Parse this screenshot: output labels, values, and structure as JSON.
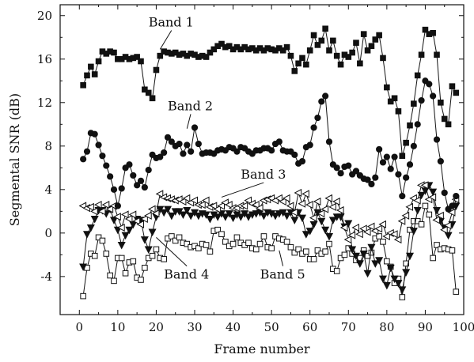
{
  "chart_data": {
    "type": "line",
    "title": "",
    "xlabel": "Frame number",
    "ylabel": "Segmental SNR (dB)",
    "xlim": [
      -5,
      100
    ],
    "ylim": [
      -7.5,
      21
    ],
    "xticks": [
      0,
      10,
      20,
      30,
      40,
      50,
      60,
      70,
      80,
      90,
      100
    ],
    "yticks": [
      -4,
      0,
      4,
      8,
      12,
      16,
      20
    ],
    "grid": false,
    "legend": "none",
    "x": [
      1,
      2,
      3,
      4,
      5,
      6,
      7,
      8,
      9,
      10,
      11,
      12,
      13,
      14,
      15,
      16,
      17,
      18,
      19,
      20,
      21,
      22,
      23,
      24,
      25,
      26,
      27,
      28,
      29,
      30,
      31,
      32,
      33,
      34,
      35,
      36,
      37,
      38,
      39,
      40,
      41,
      42,
      43,
      44,
      45,
      46,
      47,
      48,
      49,
      50,
      51,
      52,
      53,
      54,
      55,
      56,
      57,
      58,
      59,
      60,
      61,
      62,
      63,
      64,
      65,
      66,
      67,
      68,
      69,
      70,
      71,
      72,
      73,
      74,
      75,
      76,
      77,
      78,
      79,
      80,
      81,
      82,
      83,
      84,
      85,
      86,
      87,
      88,
      89,
      90,
      91,
      92,
      93,
      94,
      95,
      96,
      97,
      98
    ],
    "series": [
      {
        "name": "Band 1",
        "marker": "filled-square",
        "values": [
          13.6,
          14.5,
          15.3,
          14.6,
          15.8,
          16.7,
          16.5,
          16.7,
          16.6,
          16.0,
          16.0,
          16.2,
          16.0,
          16.1,
          16.2,
          15.8,
          13.2,
          12.9,
          12.4,
          15.0,
          16.3,
          16.7,
          16.6,
          16.5,
          16.6,
          16.4,
          16.5,
          16.3,
          16.5,
          16.4,
          16.2,
          16.3,
          16.2,
          16.6,
          16.9,
          17.2,
          17.4,
          17.1,
          17.2,
          16.9,
          17.1,
          16.9,
          17.1,
          16.9,
          17.0,
          16.8,
          17.0,
          16.8,
          17.0,
          16.9,
          16.8,
          17.0,
          16.8,
          17.1,
          16.3,
          14.9,
          15.6,
          16.1,
          15.5,
          16.8,
          18.2,
          17.3,
          17.7,
          18.8,
          16.8,
          17.7,
          16.3,
          15.5,
          16.4,
          16.2,
          16.6,
          17.5,
          15.6,
          18.3,
          16.8,
          17.2,
          17.8,
          18.2,
          16.1,
          13.4,
          12.1,
          12.4,
          11.2,
          7.1,
          8.3,
          9.9,
          11.9,
          14.5,
          16.4,
          18.7,
          18.3,
          18.4,
          16.4,
          12.0,
          10.5,
          10.0,
          13.5,
          12.9
        ]
      },
      {
        "name": "Band 2",
        "marker": "filled-circle",
        "values": [
          6.8,
          7.5,
          9.2,
          9.1,
          8.1,
          7.1,
          6.2,
          5.2,
          4.0,
          2.5,
          4.1,
          6.0,
          6.3,
          5.3,
          4.4,
          4.8,
          4.2,
          5.8,
          7.2,
          6.9,
          7.0,
          7.4,
          8.8,
          8.4,
          8.0,
          8.2,
          7.3,
          8.1,
          7.5,
          9.7,
          8.2,
          7.3,
          7.4,
          7.4,
          7.3,
          7.6,
          7.7,
          7.6,
          7.9,
          7.8,
          7.5,
          7.9,
          7.8,
          7.5,
          7.3,
          7.6,
          7.6,
          7.8,
          7.8,
          7.6,
          8.2,
          8.4,
          7.6,
          7.5,
          7.5,
          7.2,
          6.4,
          6.6,
          7.9,
          8.1,
          9.7,
          10.6,
          12.1,
          12.6,
          8.4,
          6.3,
          6.0,
          5.5,
          6.1,
          6.2,
          5.4,
          5.7,
          5.3,
          5.0,
          4.9,
          4.5,
          5.1,
          7.7,
          6.5,
          7.0,
          5.9,
          7.0,
          5.4,
          3.4,
          5.1,
          6.3,
          8.0,
          10.0,
          12.2,
          14.0,
          13.7,
          12.6,
          8.6,
          6.6,
          3.7,
          2.2,
          2.5,
          3.4
        ]
      },
      {
        "name": "Band 3",
        "marker": "open-triangle-left",
        "values": [
          2.5,
          2.3,
          2.4,
          2.0,
          2.6,
          2.0,
          2.6,
          2.2,
          2.5,
          1.5,
          0.5,
          1.7,
          1.3,
          1.7,
          1.1,
          0.8,
          1.3,
          1.6,
          2.2,
          1.8,
          3.6,
          3.3,
          3.2,
          3.1,
          3.0,
          3.1,
          2.9,
          3.2,
          2.8,
          3.0,
          2.6,
          2.6,
          3.0,
          2.4,
          2.5,
          2.2,
          2.5,
          2.8,
          2.6,
          2.3,
          2.3,
          2.5,
          2.5,
          3.0,
          2.7,
          2.6,
          2.3,
          3.0,
          3.1,
          3.2,
          3.0,
          3.2,
          2.9,
          3.2,
          2.5,
          1.9,
          3.7,
          2.7,
          3.6,
          2.6,
          1.4,
          2.9,
          1.8,
          2.2,
          3.2,
          2.4,
          2.9,
          2.1,
          0.5,
          -0.6,
          -0.2,
          0.5,
          -0.1,
          0.4,
          0.1,
          0.6,
          0.2,
          0.4,
          0.8,
          -0.3,
          0.0,
          -0.1,
          -0.6,
          1.1,
          1.6,
          2.4,
          3.2,
          3.0,
          4.4,
          4.4,
          3.1,
          3.3,
          1.2,
          1.6,
          0.3,
          0.7,
          1.9,
          3.1
        ]
      },
      {
        "name": "Band 4",
        "marker": "filled-triangle-down",
        "values": [
          -3.1,
          -0.1,
          0.5,
          1.3,
          2.1,
          2.1,
          1.8,
          2.2,
          1.2,
          0.3,
          -1.1,
          -0.2,
          0.3,
          0.8,
          1.3,
          1.2,
          -0.6,
          -1.5,
          0.1,
          1.5,
          2.2,
          1.9,
          2.2,
          1.6,
          2.0,
          2.0,
          1.7,
          2.1,
          1.6,
          1.9,
          1.6,
          1.8,
          1.7,
          1.3,
          1.7,
          1.5,
          1.8,
          1.5,
          1.8,
          1.4,
          1.7,
          1.5,
          1.8,
          1.5,
          1.7,
          1.8,
          1.9,
          1.6,
          1.9,
          1.8,
          1.6,
          1.8,
          1.9,
          1.6,
          1.9,
          1.2,
          1.9,
          1.4,
          -0.1,
          0.2,
          0.8,
          1.9,
          1.1,
          0.3,
          -0.3,
          1.2,
          1.5,
          1.5,
          0.6,
          0.9,
          -1.5,
          -2.1,
          -2.8,
          -1.9,
          -3.7,
          -1.3,
          -2.8,
          -2.5,
          -4.2,
          -4.8,
          -3.2,
          -4.2,
          -4.6,
          -5.2,
          -3.6,
          -2.1,
          0.2,
          2.1,
          3.5,
          3.9,
          4.4,
          3.8,
          2.1,
          1.1,
          0.5,
          -0.2,
          0.8,
          2.5
        ]
      },
      {
        "name": "Band 5",
        "marker": "open-square",
        "values": [
          -5.8,
          -3.2,
          -1.9,
          -2.1,
          -0.4,
          -0.7,
          -1.9,
          -3.9,
          -4.4,
          -2.3,
          -2.3,
          -3.7,
          -2.7,
          -2.6,
          -4.1,
          -4.3,
          -3.2,
          -2.3,
          -2.1,
          -1.5,
          -2.3,
          -2.4,
          -0.5,
          -0.3,
          -0.7,
          -0.4,
          -0.9,
          -1.0,
          -1.3,
          -1.2,
          -1.4,
          -1.0,
          -1.1,
          -1.7,
          0.2,
          0.3,
          -0.1,
          -0.8,
          -1.2,
          -1.0,
          -0.4,
          -0.9,
          -1.1,
          -0.9,
          -1.4,
          -1.5,
          -1.0,
          -0.3,
          -1.3,
          -1.4,
          -0.3,
          -0.5,
          -0.6,
          -0.8,
          -1.3,
          -1.8,
          -1.5,
          -1.9,
          -1.7,
          -2.4,
          -2.4,
          -1.6,
          -1.9,
          -1.7,
          -1.0,
          -3.3,
          -3.5,
          -2.3,
          -2.0,
          -1.4,
          -1.9,
          -2.5,
          -2.3,
          -1.6,
          -2.1,
          -1.8,
          -0.5,
          -0.3,
          -0.8,
          -2.6,
          -3.1,
          -4.6,
          -4.2,
          -5.9,
          -2.8,
          0.3,
          1.1,
          1.1,
          0.8,
          2.5,
          1.7,
          -2.3,
          -1.1,
          -1.5,
          -1.4,
          -1.5,
          -1.6,
          -5.4
        ]
      }
    ],
    "annotations": [
      {
        "text": "Band 1",
        "series": 0,
        "x": 18,
        "y": 19.0,
        "target_x": 21,
        "target_y": 16.9
      },
      {
        "text": "Band 2",
        "series": 1,
        "x": 23,
        "y": 11.3,
        "target_x": 28,
        "target_y": 9.6
      },
      {
        "text": "Band 3",
        "series": 2,
        "x": 42,
        "y": 5.0,
        "target_x": 37,
        "target_y": 3.3
      },
      {
        "text": "Band 4",
        "series": 3,
        "x": 22,
        "y": -4.2,
        "target_x": 20,
        "target_y": -0.4
      },
      {
        "text": "Band 5",
        "series": 4,
        "x": 47,
        "y": -4.2,
        "target_x": 52,
        "target_y": -1.6
      }
    ]
  }
}
